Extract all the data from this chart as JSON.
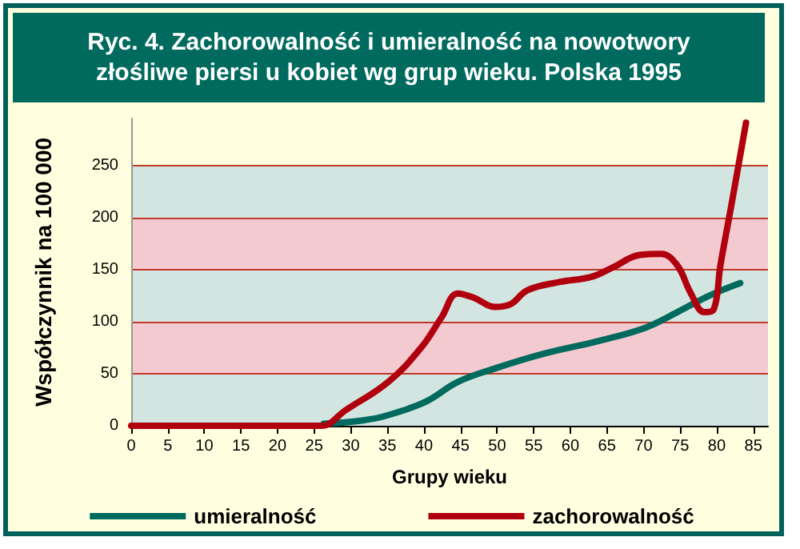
{
  "chart_data": {
    "type": "line",
    "title": "Ryc. 4. Zachorowalność i umieralność na nowotwory\nzłośliwe piersi u kobiet wg grup wieku. Polska 1995",
    "xlabel": "Grupy wieku",
    "ylabel": "Współczynnik na 100 000",
    "series": [
      {
        "name": "umieralność",
        "color": "#006a5e",
        "x": [
          26.3,
          31.5,
          35,
          40.2,
          44.6,
          49.7,
          56.3,
          63.6,
          70.2,
          74.6,
          79,
          83.2
        ],
        "values": [
          2,
          5,
          10,
          23,
          42,
          55,
          69,
          81,
          94,
          109,
          125,
          137
        ]
      },
      {
        "name": "zachorowalność",
        "color": "#b0000e",
        "x": [
          0,
          10,
          20,
          26,
          29.3,
          35.1,
          39.5,
          42.4,
          44.6,
          46.8,
          49.7,
          51.9,
          54.1,
          58.5,
          62.9,
          65.8,
          69.5,
          72.4,
          74.6,
          76.4,
          78.3,
          79.6,
          80.5,
          81.9,
          84
        ],
        "values": [
          0,
          0,
          0,
          0,
          15,
          42,
          74,
          104,
          127,
          123,
          114,
          117,
          130,
          138,
          143,
          152,
          164,
          165,
          154,
          128,
          109,
          112,
          154,
          208,
          291
        ]
      }
    ],
    "xlim": [
      0,
      87
    ],
    "xticks": [
      0,
      5,
      10,
      15,
      20,
      25,
      30,
      35,
      40,
      45,
      50,
      55,
      60,
      65,
      70,
      75,
      80,
      85
    ],
    "ylim": [
      0,
      295
    ],
    "yticks": [
      0,
      50,
      100,
      150,
      200,
      250
    ],
    "grid": "y",
    "legend": "bottom",
    "marker": "none",
    "line_style": "solid"
  }
}
